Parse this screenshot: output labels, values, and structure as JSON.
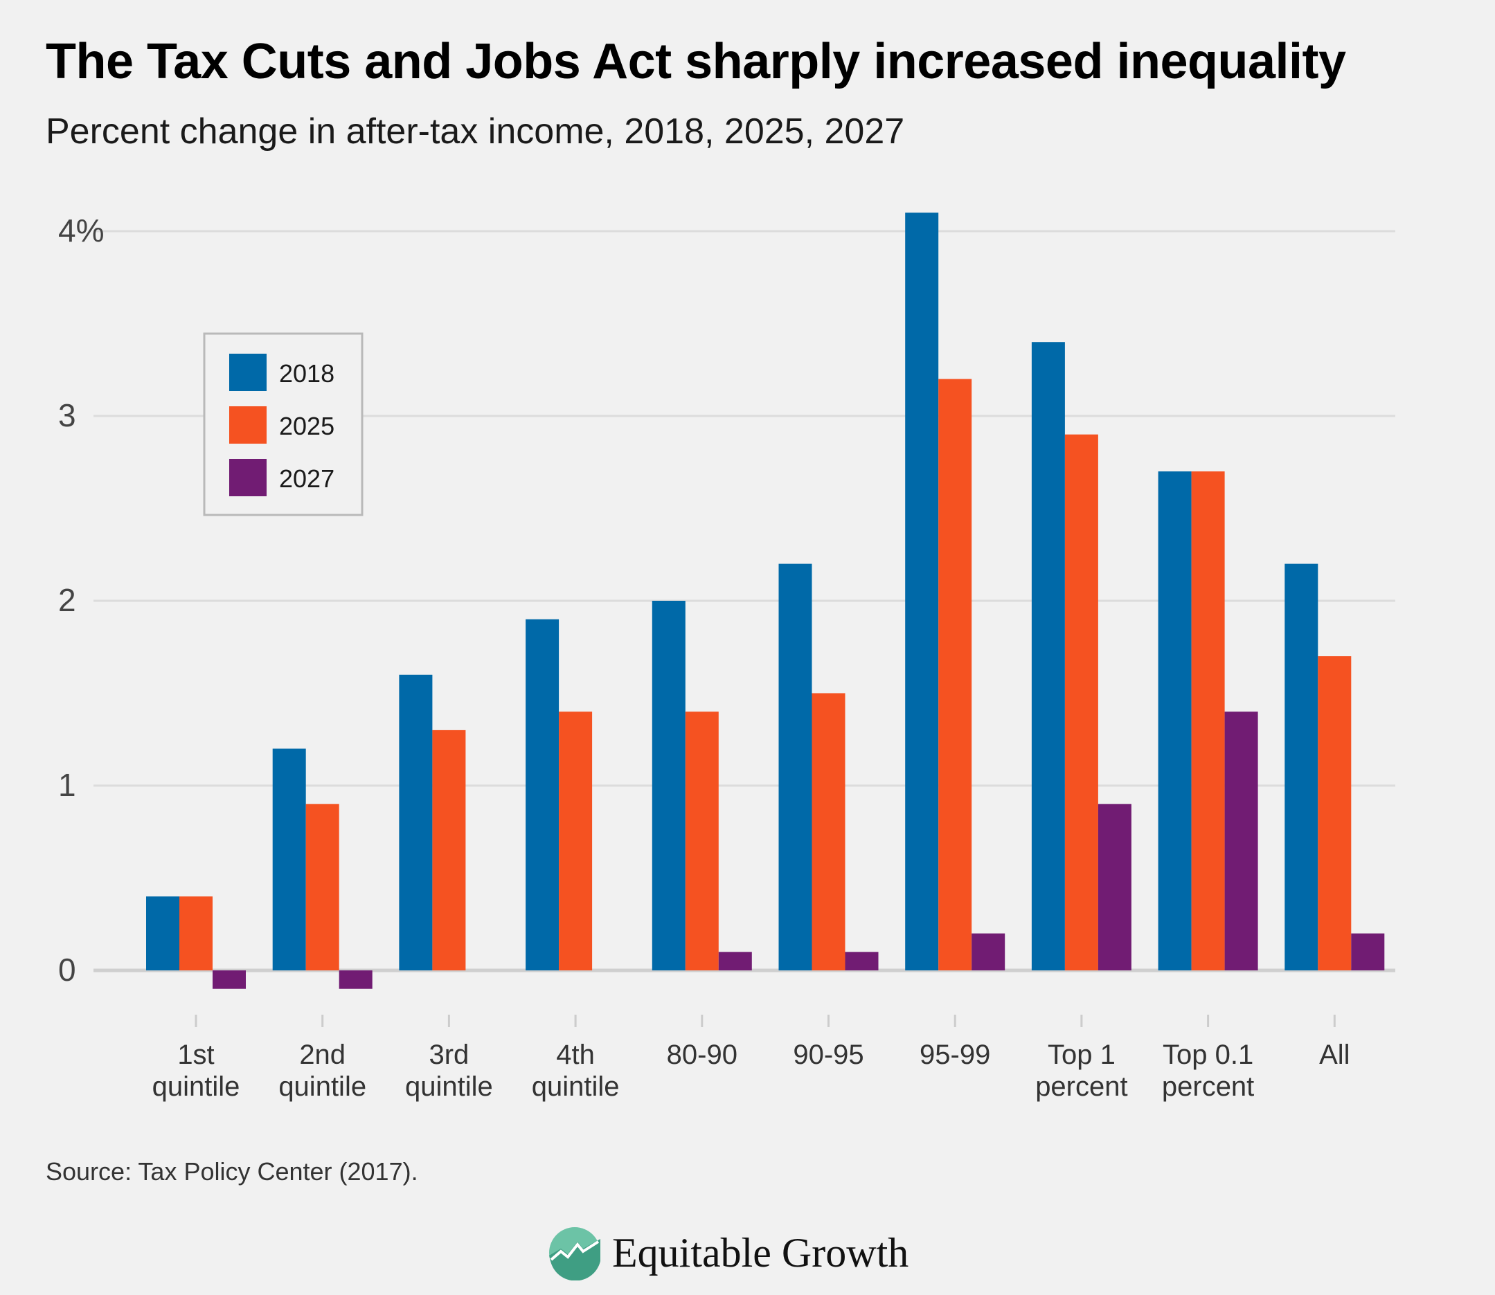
{
  "header": {
    "title": "The Tax Cuts and Jobs Act sharply increased inequality",
    "subtitle": "Percent change in after-tax income, 2018, 2025, 2027"
  },
  "footer": {
    "source": "Source: Tax Policy Center (2017).",
    "brand": "Equitable Growth"
  },
  "chart_data": {
    "type": "bar",
    "title": "The Tax Cuts and Jobs Act sharply increased inequality",
    "subtitle": "Percent change in after-tax income, 2018, 2025, 2027",
    "xlabel": "",
    "ylabel": "",
    "ylim": [
      -0.3,
      4.2
    ],
    "yticks": [
      {
        "value": 0,
        "label": "0"
      },
      {
        "value": 1,
        "label": "1"
      },
      {
        "value": 2,
        "label": "2"
      },
      {
        "value": 3,
        "label": "3"
      },
      {
        "value": 4,
        "label": "4%"
      }
    ],
    "grid": true,
    "legend_position": "upper-left",
    "categories": [
      [
        "1st",
        "quintile"
      ],
      [
        "2nd",
        "quintile"
      ],
      [
        "3rd",
        "quintile"
      ],
      [
        "4th",
        "quintile"
      ],
      [
        "80-90"
      ],
      [
        "90-95"
      ],
      [
        "95-99"
      ],
      [
        "Top 1",
        "percent"
      ],
      [
        "Top 0.1",
        "percent"
      ],
      [
        "All"
      ]
    ],
    "series": [
      {
        "name": "2018",
        "color": "#0069a8",
        "values": [
          0.4,
          1.2,
          1.6,
          1.9,
          2.0,
          2.2,
          4.1,
          3.4,
          2.7,
          2.2
        ]
      },
      {
        "name": "2025",
        "color": "#f55221",
        "values": [
          0.4,
          0.9,
          1.3,
          1.4,
          1.4,
          1.5,
          3.2,
          2.9,
          2.7,
          1.7
        ]
      },
      {
        "name": "2027",
        "color": "#711c73",
        "values": [
          -0.1,
          -0.1,
          0,
          0,
          0.1,
          0.1,
          0.2,
          0.9,
          1.4,
          0.2
        ]
      }
    ]
  }
}
